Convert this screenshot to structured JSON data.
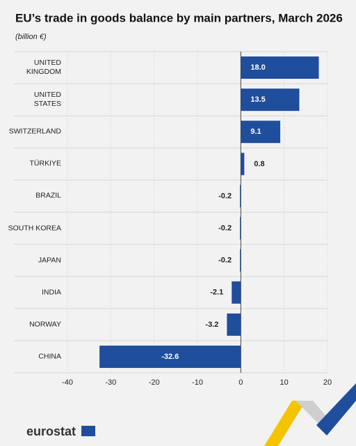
{
  "chart_data": {
    "type": "hbar",
    "title": "EU’s trade in goods balance by main partners, March 2026",
    "subtitle": "(billion €)",
    "categories": [
      "UNITED\nKINGDOM",
      "UNITED\nSTATES",
      "SWITZERLAND",
      "TÜRKIYE",
      "BRAZIL",
      "SOUTH KOREA",
      "JAPAN",
      "INDIA",
      "NORWAY",
      "CHINA"
    ],
    "values": [
      18.0,
      13.5,
      9.1,
      0.8,
      -0.2,
      -0.2,
      -0.2,
      -2.1,
      -3.2,
      -32.6
    ],
    "value_labels": [
      "18.0",
      "13.5",
      "9.1",
      "0.8",
      "-0.2",
      "-0.2",
      "-0.2",
      "-2.1",
      "-3.2",
      "-32.6"
    ],
    "color": "#1f4e9c",
    "xlim": [
      -40,
      20
    ],
    "xticks": [
      -40,
      -30,
      -20,
      -10,
      0,
      10,
      20
    ],
    "grid": true,
    "footer": "eurostat"
  }
}
